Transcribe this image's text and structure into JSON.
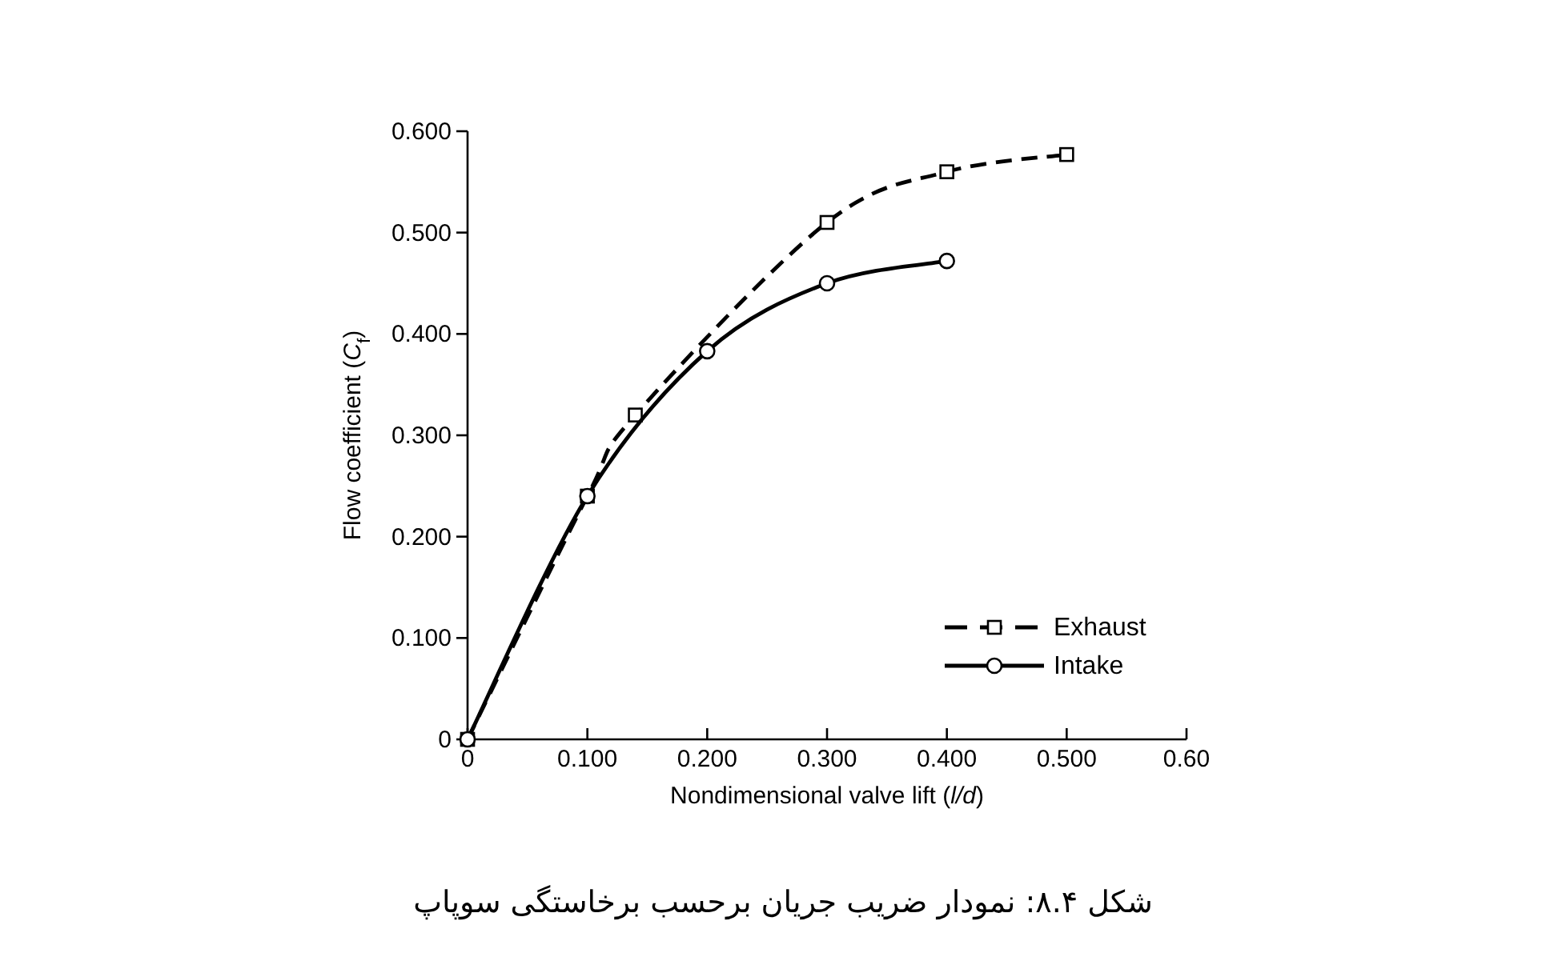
{
  "chart_data": {
    "type": "line",
    "xlabel": "Nondimensional valve lift (*l/d*)",
    "ylabel": "Flow coefficient (*C*$_{f}$)",
    "xlim": [
      0,
      0.6
    ],
    "ylim": [
      0,
      0.6
    ],
    "xticks": [
      0,
      {
        "value": 0.1,
        "label": "0.100"
      },
      {
        "value": 0.2,
        "label": "0.200"
      },
      {
        "value": 0.3,
        "label": "0.300"
      },
      {
        "value": 0.4,
        "label": "0.400"
      },
      {
        "value": 0.5,
        "label": "0.500"
      },
      {
        "value": 0.6,
        "label": "0.60"
      }
    ],
    "yticks": [
      0,
      {
        "value": 0.1,
        "label": "0.100"
      },
      {
        "value": 0.2,
        "label": "0.200"
      },
      {
        "value": 0.3,
        "label": "0.300"
      },
      {
        "value": 0.4,
        "label": "0.400"
      },
      {
        "value": 0.5,
        "label": "0.500"
      },
      {
        "value": 0.6,
        "label": "0.600"
      }
    ],
    "series": [
      {
        "name": "Exhaust",
        "color": "#000000",
        "marker": "square",
        "line_style": "dashed",
        "x": [
          0,
          0.1,
          0.14,
          0.3,
          0.4,
          0.5
        ],
        "values": [
          0,
          0.24,
          0.32,
          0.51,
          0.56,
          0.577
        ]
      },
      {
        "name": "Intake",
        "color": "#000000",
        "marker": "circle",
        "line_style": "solid",
        "x": [
          0,
          0.1,
          0.2,
          0.3,
          0.4
        ],
        "values": [
          0,
          0.24,
          0.383,
          0.45,
          0.472
        ]
      }
    ],
    "legend": "bottom right",
    "grid": false,
    "annotations": [
      "شکل ۸.۴: نمودار ضریب جریان برحسب برخاستگی سوپاپ"
    ]
  }
}
